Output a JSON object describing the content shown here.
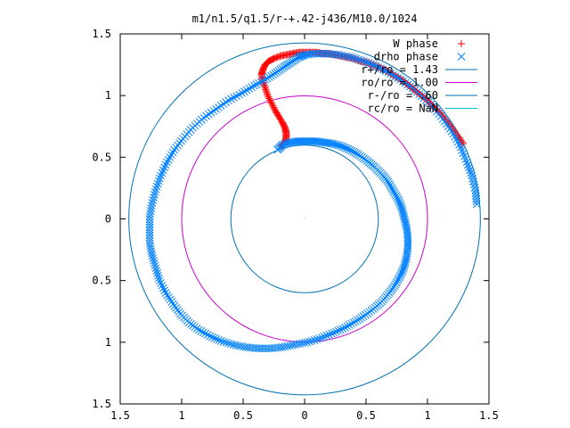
{
  "chart_data": {
    "type": "scatter",
    "title": "m1/n1.5/q1.5/r-+.42-j436/M10.0/1024",
    "xlim": [
      -1.5,
      1.5
    ],
    "ylim": [
      -1.5,
      1.5
    ],
    "x_ticks": [
      {
        "value": -1.5,
        "label": "1.5"
      },
      {
        "value": -1,
        "label": "1"
      },
      {
        "value": -0.5,
        "label": "0.5"
      },
      {
        "value": 0,
        "label": "0"
      },
      {
        "value": 0.5,
        "label": "0.5"
      },
      {
        "value": 1,
        "label": "1"
      },
      {
        "value": 1.5,
        "label": "1.5"
      }
    ],
    "y_ticks": [
      {
        "value": 1.5,
        "label": "1.5"
      },
      {
        "value": 1,
        "label": "1"
      },
      {
        "value": 0.5,
        "label": "0.5"
      },
      {
        "value": 0,
        "label": "0"
      },
      {
        "value": -0.5,
        "label": "0.5"
      },
      {
        "value": -1,
        "label": "1"
      },
      {
        "value": -1.5,
        "label": "1.5"
      }
    ],
    "grid": false,
    "legend_position": "top-right",
    "series": [
      {
        "name": "W phase",
        "marker": "plus",
        "color": "#ff0000",
        "points": [
          [
            -0.19,
            0.59
          ],
          [
            -0.16,
            0.62
          ],
          [
            -0.15,
            0.66
          ],
          [
            -0.15,
            0.7
          ],
          [
            -0.16,
            0.74
          ],
          [
            -0.18,
            0.78
          ],
          [
            -0.21,
            0.83
          ],
          [
            -0.24,
            0.88
          ],
          [
            -0.27,
            0.94
          ],
          [
            -0.3,
            1.0
          ],
          [
            -0.32,
            1.06
          ],
          [
            -0.34,
            1.12
          ],
          [
            -0.35,
            1.17
          ],
          [
            -0.34,
            1.21
          ],
          [
            -0.32,
            1.25
          ],
          [
            -0.29,
            1.28
          ],
          [
            -0.25,
            1.3
          ],
          [
            -0.2,
            1.32
          ],
          [
            -0.15,
            1.33
          ],
          [
            -0.1,
            1.34
          ],
          [
            -0.05,
            1.35
          ],
          [
            0.0,
            1.35
          ],
          [
            0.05,
            1.35
          ],
          [
            0.1,
            1.35
          ],
          [
            0.15,
            1.34
          ],
          [
            0.2,
            1.34
          ],
          [
            0.25,
            1.33
          ],
          [
            0.3,
            1.32
          ],
          [
            0.35,
            1.31
          ],
          [
            0.4,
            1.3
          ],
          [
            0.45,
            1.28
          ],
          [
            0.5,
            1.27
          ],
          [
            0.55,
            1.25
          ],
          [
            0.6,
            1.23
          ],
          [
            0.65,
            1.21
          ],
          [
            0.7,
            1.18
          ],
          [
            0.75,
            1.15
          ],
          [
            0.8,
            1.12
          ],
          [
            0.85,
            1.08
          ],
          [
            0.9,
            1.04
          ],
          [
            0.95,
            1.0
          ],
          [
            1.0,
            0.96
          ],
          [
            1.05,
            0.91
          ],
          [
            1.1,
            0.86
          ],
          [
            1.15,
            0.8
          ],
          [
            1.2,
            0.74
          ],
          [
            1.25,
            0.67
          ],
          [
            1.29,
            0.61
          ]
        ]
      },
      {
        "name": "drho phase",
        "marker": "cross",
        "color": "#0080ff",
        "points": [
          [
            -0.22,
            0.56
          ],
          [
            -0.18,
            0.6
          ],
          [
            -0.12,
            0.62
          ],
          [
            -0.05,
            0.63
          ],
          [
            0.02,
            0.63
          ],
          [
            0.09,
            0.63
          ],
          [
            0.16,
            0.62
          ],
          [
            0.23,
            0.61
          ],
          [
            0.3,
            0.59
          ],
          [
            0.37,
            0.56
          ],
          [
            0.44,
            0.52
          ],
          [
            0.51,
            0.47
          ],
          [
            0.57,
            0.42
          ],
          [
            0.63,
            0.36
          ],
          [
            0.68,
            0.3
          ],
          [
            0.72,
            0.23
          ],
          [
            0.76,
            0.16
          ],
          [
            0.79,
            0.09
          ],
          [
            0.81,
            0.01
          ],
          [
            0.83,
            -0.07
          ],
          [
            0.84,
            -0.15
          ],
          [
            0.84,
            -0.23
          ],
          [
            0.83,
            -0.31
          ],
          [
            0.81,
            -0.39
          ],
          [
            0.78,
            -0.46
          ],
          [
            0.74,
            -0.53
          ],
          [
            0.69,
            -0.6
          ],
          [
            0.63,
            -0.67
          ],
          [
            0.56,
            -0.73
          ],
          [
            0.48,
            -0.79
          ],
          [
            0.4,
            -0.84
          ],
          [
            0.31,
            -0.89
          ],
          [
            0.22,
            -0.93
          ],
          [
            0.12,
            -0.97
          ],
          [
            0.02,
            -1.0
          ],
          [
            -0.08,
            -1.02
          ],
          [
            -0.18,
            -1.04
          ],
          [
            -0.28,
            -1.05
          ],
          [
            -0.38,
            -1.05
          ],
          [
            -0.48,
            -1.04
          ],
          [
            -0.58,
            -1.02
          ],
          [
            -0.68,
            -0.99
          ],
          [
            -0.77,
            -0.95
          ],
          [
            -0.86,
            -0.9
          ],
          [
            -0.94,
            -0.84
          ],
          [
            -1.01,
            -0.77
          ],
          [
            -1.07,
            -0.69
          ],
          [
            -1.13,
            -0.6
          ],
          [
            -1.18,
            -0.5
          ],
          [
            -1.21,
            -0.4
          ],
          [
            -1.24,
            -0.3
          ],
          [
            -1.26,
            -0.2
          ],
          [
            -1.26,
            -0.09
          ],
          [
            -1.26,
            0.02
          ],
          [
            -1.24,
            0.13
          ],
          [
            -1.21,
            0.24
          ],
          [
            -1.17,
            0.35
          ],
          [
            -1.12,
            0.46
          ],
          [
            -1.06,
            0.56
          ],
          [
            -0.99,
            0.65
          ],
          [
            -0.91,
            0.74
          ],
          [
            -0.82,
            0.82
          ],
          [
            -0.72,
            0.89
          ],
          [
            -0.62,
            0.96
          ],
          [
            -0.51,
            1.02
          ],
          [
            -0.41,
            1.08
          ],
          [
            -0.32,
            1.13
          ],
          [
            -0.24,
            1.18
          ],
          [
            -0.17,
            1.23
          ],
          [
            -0.11,
            1.27
          ],
          [
            -0.05,
            1.31
          ],
          [
            0.0,
            1.33
          ],
          [
            0.08,
            1.34
          ],
          [
            0.18,
            1.34
          ],
          [
            0.28,
            1.33
          ],
          [
            0.38,
            1.31
          ],
          [
            0.48,
            1.28
          ],
          [
            0.58,
            1.24
          ],
          [
            0.68,
            1.19
          ],
          [
            0.78,
            1.13
          ],
          [
            0.88,
            1.06
          ],
          [
            0.97,
            0.98
          ],
          [
            1.06,
            0.89
          ],
          [
            1.14,
            0.79
          ],
          [
            1.21,
            0.69
          ],
          [
            1.27,
            0.58
          ],
          [
            1.32,
            0.46
          ],
          [
            1.36,
            0.35
          ],
          [
            1.39,
            0.23
          ],
          [
            1.4,
            0.12
          ]
        ]
      },
      {
        "name": "r+/ro = 1.43",
        "type": "circle",
        "radius": 1.43,
        "color": "#0072b2"
      },
      {
        "name": "ro/ro = 1.00",
        "type": "circle",
        "radius": 1.0,
        "color": "#cc00cc"
      },
      {
        "name": "r-/ro = .60",
        "type": "circle",
        "radius": 0.6,
        "color": "#0072b2"
      },
      {
        "name": "rc/ro = NaN",
        "type": "circle",
        "radius": null,
        "color": "#00c0e0"
      }
    ]
  }
}
